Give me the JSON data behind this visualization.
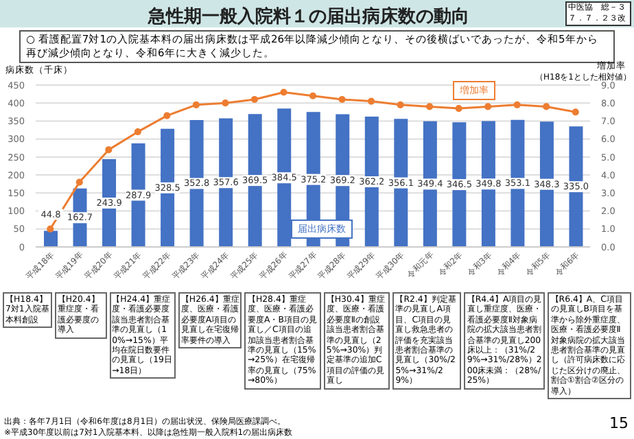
{
  "chart_data": {
    "type": "bar",
    "title": "急性期一般入院料１の届出病床数の動向",
    "subtitle": "○ 看護配置7対1の入院基本料の届出病床数は平成26年以降減少傾向となり、その後横ばいであったが、令和5年から再び減少傾向となり、令和6年に大きく減少した。",
    "ylabel": "病床数（千床）",
    "y2label": "増加率",
    "categories": [
      "平成18年",
      "平成19年",
      "平成20年",
      "平成21年",
      "平成22年",
      "平成23年",
      "平成24年",
      "平成25年",
      "平成26年",
      "平成27年",
      "平成28年",
      "平成29年",
      "平成30年",
      "令和元年",
      "令和2年",
      "令和3年",
      "令和4年",
      "令和5年",
      "令和6年"
    ],
    "series": [
      {
        "name": "届出病床数",
        "color": "#4472c4",
        "values": [
          44.8,
          162.7,
          243.9,
          287.9,
          328.5,
          352.8,
          357.6,
          369.5,
          384.5,
          375.2,
          369.2,
          362.2,
          356.1,
          349.4,
          346.5,
          349.8,
          353.1,
          348.3,
          335.0
        ],
        "value_labels": [
          "44.8",
          "162.7",
          "243.9",
          "287.9",
          "328.5",
          "352.8",
          "357.6",
          "369.5",
          "384.5",
          "375.2",
          "369.2",
          "362.2",
          "356.1",
          "349.4",
          "346.5",
          "349.8",
          "353.1",
          "348.3",
          "335.0"
        ]
      },
      {
        "name": "増加率",
        "type": "line",
        "axis": "y2",
        "color": "#ed7d31",
        "marker": "circle",
        "values": [
          1.0,
          3.6,
          5.4,
          6.4,
          7.3,
          7.9,
          8.0,
          8.2,
          8.6,
          8.4,
          8.2,
          8.1,
          7.9,
          7.8,
          7.7,
          7.8,
          7.9,
          7.8,
          7.5
        ]
      }
    ],
    "ylim": [
      0,
      450
    ],
    "yticks": [
      0,
      50,
      100,
      150,
      200,
      250,
      300,
      350,
      400,
      450
    ],
    "y2lim": [
      0,
      9
    ],
    "y2ticks": [
      {
        "value": 0,
        "label": "0.0"
      },
      {
        "value": 1,
        "label": "1.0"
      },
      {
        "value": 2,
        "label": "2.0"
      },
      {
        "value": 3,
        "label": "3.0"
      },
      {
        "value": 4,
        "label": "4.0"
      },
      {
        "value": 5,
        "label": "5.0"
      },
      {
        "value": 6,
        "label": "6.0"
      },
      {
        "value": 7,
        "label": "7.0"
      },
      {
        "value": 8,
        "label": "8.0"
      },
      {
        "value": 9,
        "label": "9.0"
      }
    ],
    "grid": "y",
    "annotations": [
      "中医協　総－３７．７．２３改",
      "（H18を1とした相対値）",
      "【H18.4】7対1入院基本料創設",
      "【H20.4】重症度・看護必要度の導入",
      "【H24.4】重症度・看護必要度該当患者割合基準の見直し（10%→15%）平均在院日数要件の見直し（19日→18日）",
      "【H26.4】重症度、医療・看護必要度A項目の見直し在宅復帰率要件の導入",
      "【H28.4】重症度、医療・看護必要度A・B項目の見直し／C項目の追加該当患者割合基準の見直し（15%→25%）在宅復帰率の見直し（75%→80%）",
      "【H30.4】重症度、医療・看護必要度Ⅱの創設該当患者割合基準の見直し（25%→30%）判定基準の追加C項目の評価の見直し",
      "【R2.4】判定基準の見直しA項目、C項目の見直し救急患者の評価を充実該当患者割合基準の見直し（30%/25%→31%/29%）",
      "【R4.4】A項目の見直し重症度、医療・看護必要度Ⅱ対象病院の拡大該当患者割合基準の見直し200床以上：（31%/29%→31%/28%）200床未満：（28%/25%）",
      "【R6.4】A、C項目の見直しB項目を基準から除外重症度、医療・看護必要度Ⅱ対象病院の拡大該当患者割合基準の見直し（許可病床数に応じた区分けの廃止、割合①割合②区分の導入）",
      "出典：各年7月1日（令和6年度は8月1日）の届出状況、保険局医療課調べ。",
      "※平成30年度以前は7対1入院基本料、以降は急性期一般入院料1の届出病床数",
      "15"
    ]
  }
}
